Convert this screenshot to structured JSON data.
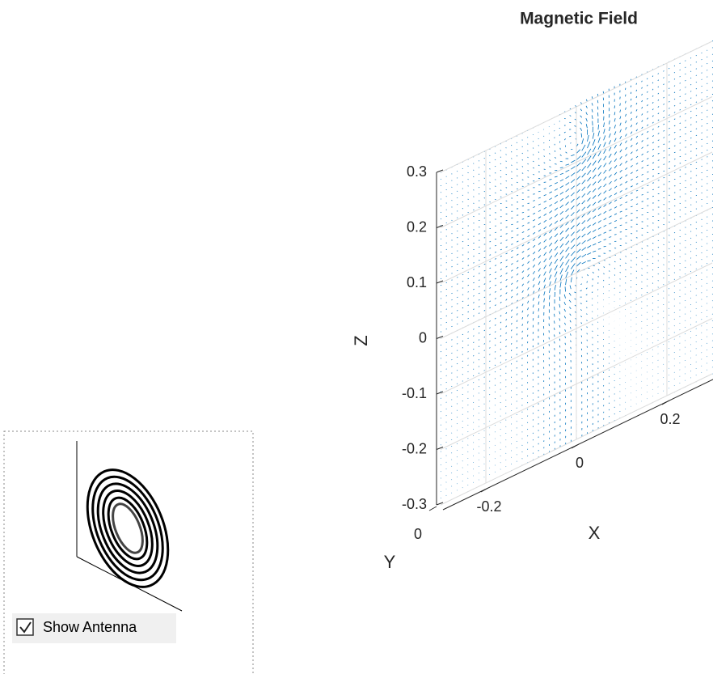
{
  "chart_data": {
    "type": "quiver3",
    "title": "Magnetic Field",
    "xlabel": "X",
    "ylabel": "Y",
    "zlabel": "Z",
    "xlim": [
      -0.3,
      0.3
    ],
    "xticks": [
      -0.2,
      0,
      0.2
    ],
    "yticks": [
      0
    ],
    "zlim": [
      -0.3,
      0.3
    ],
    "zticks": [
      -0.3,
      -0.2,
      -0.1,
      0,
      0.1,
      0.2,
      0.3
    ],
    "color": "#0072bd",
    "grid": true
  },
  "ui": {
    "checkbox": {
      "label": "Show Antenna",
      "checked": true
    }
  }
}
